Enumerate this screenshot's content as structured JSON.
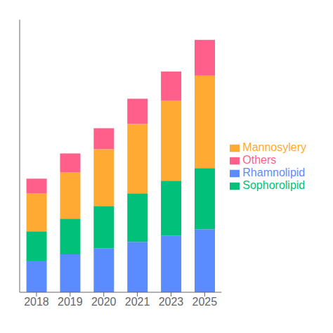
{
  "chart_data": {
    "type": "bar",
    "stacked": true,
    "categories": [
      "2018",
      "2019",
      "2020",
      "2021",
      "2023",
      "2025"
    ],
    "series": [
      {
        "name": "Rhamnolipid",
        "color": "#5b8cff",
        "values": [
          1.5,
          1.8,
          2.1,
          2.4,
          2.7,
          3.0
        ]
      },
      {
        "name": "Sophorolipid",
        "color": "#00c07a",
        "values": [
          1.4,
          1.7,
          2.0,
          2.3,
          2.6,
          2.9
        ]
      },
      {
        "name": "Mannosylery",
        "color": "#ffaa33",
        "values": [
          1.8,
          2.2,
          2.7,
          3.3,
          3.8,
          4.4
        ]
      },
      {
        "name": "Others",
        "color": "#ff5f8a",
        "values": [
          0.7,
          0.9,
          1.0,
          1.2,
          1.4,
          1.7
        ]
      }
    ],
    "ylim": [
      0,
      12.96
    ],
    "tick_labels": "x",
    "grid": false,
    "legend": "right"
  }
}
